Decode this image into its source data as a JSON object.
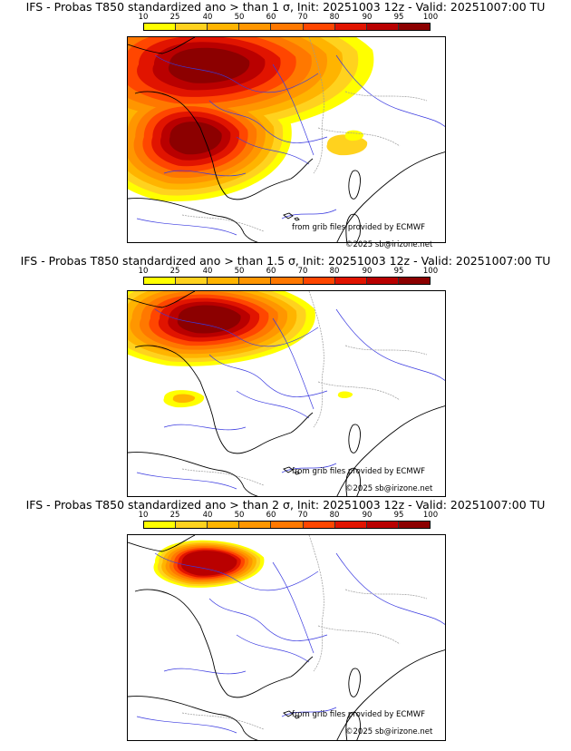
{
  "colorbar": {
    "ticks": [
      "10",
      "25",
      "40",
      "50",
      "60",
      "70",
      "80",
      "90",
      "95",
      "100"
    ],
    "colors": [
      "#ffff00",
      "#ffd21e",
      "#ffb400",
      "#ff9600",
      "#ff7800",
      "#ff4600",
      "#e11400",
      "#b90000",
      "#8c0000"
    ]
  },
  "panels": [
    {
      "title": "IFS - Probas T850  standardized ano > than 1 σ, Init: 20251003 12z - Valid: 20251007:00 TU",
      "credit_source": "from grib files provided by ECMWF",
      "credit_copyright": "©2025 sb@irizone.net",
      "intensity": 1.0
    },
    {
      "title": "IFS - Probas T850  standardized ano > than 1.5 σ, Init: 20251003 12z - Valid: 20251007:00 TU",
      "credit_source": "from grib files provided by ECMWF",
      "credit_copyright": "©2025 sb@irizone.net",
      "intensity": 0.6
    },
    {
      "title": "IFS - Probas T850  standardized ano > than 2 σ, Init: 20251003 12z - Valid: 20251007:00 TU",
      "credit_source": "from grib files provided by ECMWF",
      "credit_copyright": "©2025 sb@irizone.net",
      "intensity": 0.25
    }
  ]
}
